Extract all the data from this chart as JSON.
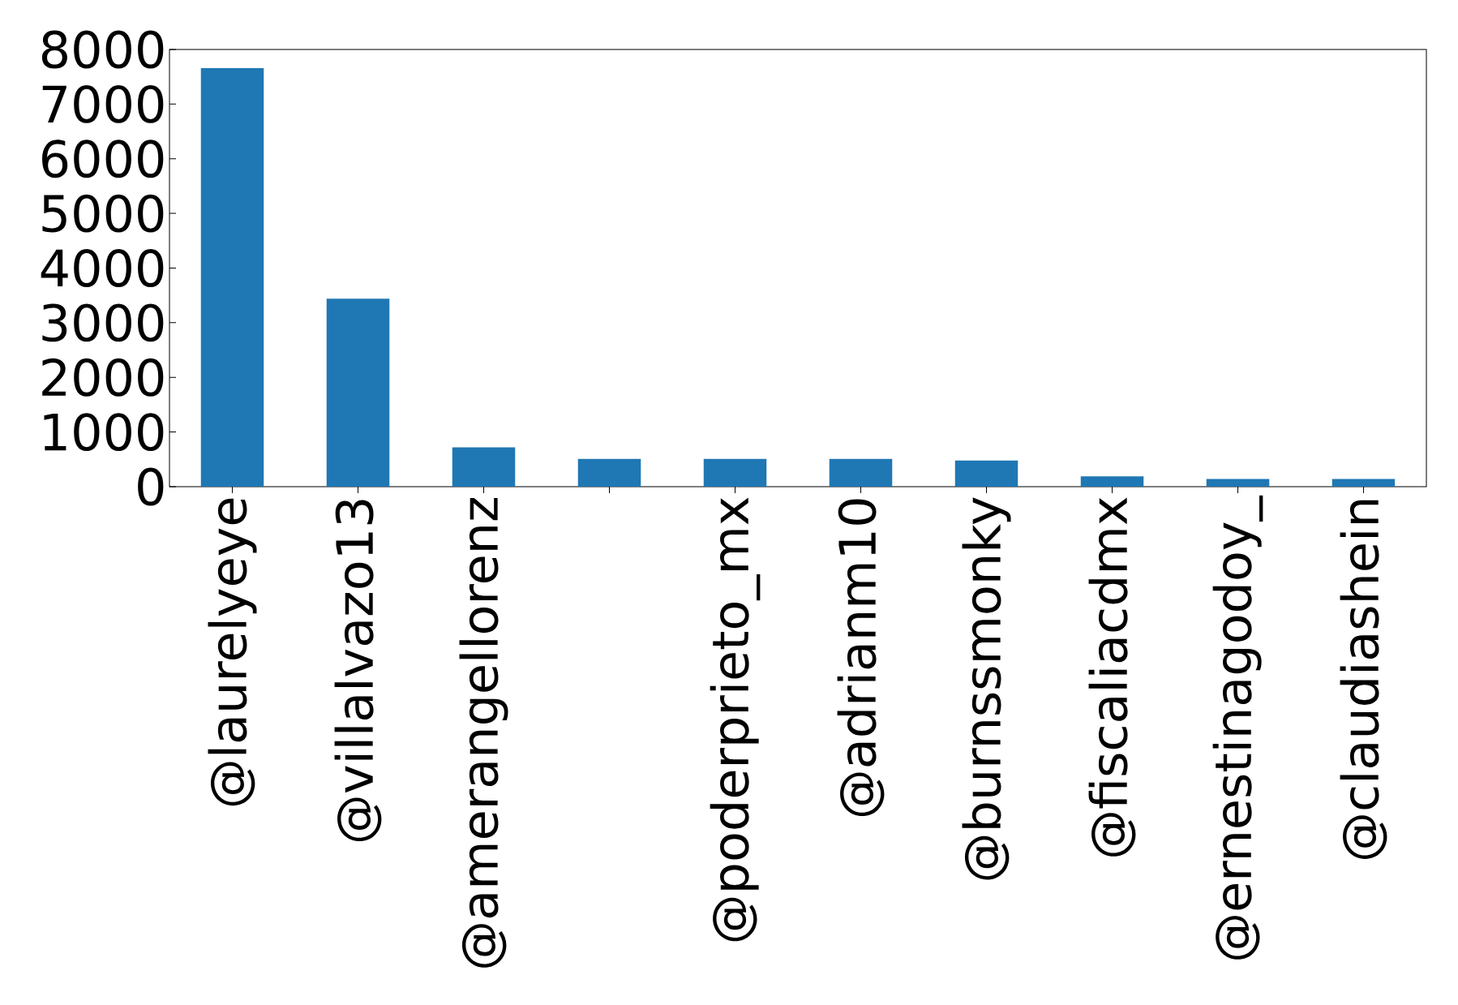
{
  "chart_data": {
    "type": "bar",
    "categories": [
      "@laurelyeye",
      "@villalvazo13",
      "@amerangellorenz",
      null,
      "@poderprieto_mx",
      "@adrianm10",
      "@burnssmonky",
      "@fiscaliacdmx",
      "@ernestinagodoy_",
      "@claudiashein"
    ],
    "values": [
      7660,
      3440,
      720,
      510,
      510,
      510,
      480,
      190,
      140,
      140
    ],
    "color": "#1f77b4",
    "ylim": [
      0,
      8000
    ],
    "yticks": [
      0,
      1000,
      2000,
      3000,
      4000,
      5000,
      6000,
      7000,
      8000
    ],
    "grid": false
  }
}
